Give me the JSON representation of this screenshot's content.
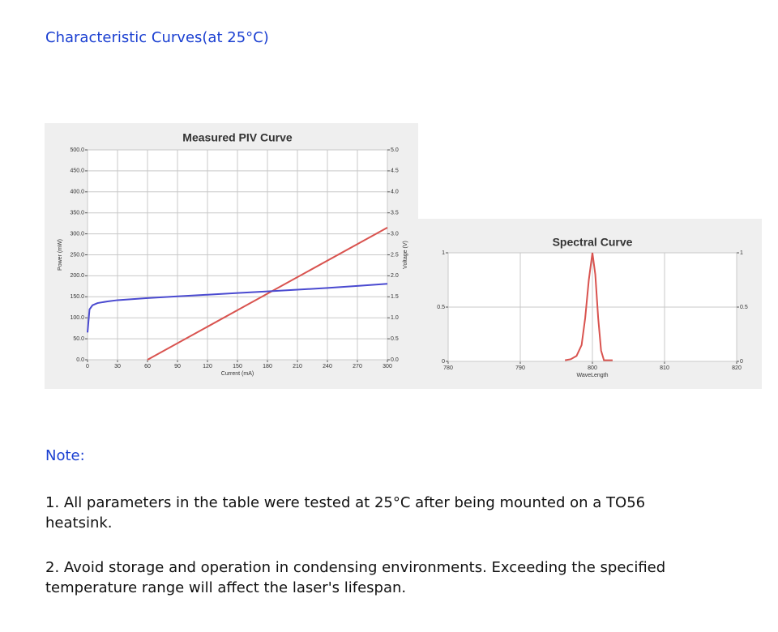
{
  "header": {
    "title": "Characteristic Curves(at 25°C)"
  },
  "chart_data": [
    {
      "type": "line",
      "title": "Measured PIV Curve",
      "x_label": "Current (mA)",
      "y_label": "Power (mW)",
      "y2_label": "Voltage (V)",
      "xlim": [
        0,
        300
      ],
      "xticks": [
        0,
        30,
        60,
        90,
        120,
        150,
        180,
        210,
        240,
        270,
        300
      ],
      "ylim": [
        0,
        500
      ],
      "yticks": [
        {
          "value": 0,
          "label": "0.0"
        },
        {
          "value": 50,
          "label": "50.0"
        },
        {
          "value": 100,
          "label": "100.0"
        },
        {
          "value": 150,
          "label": "150.0"
        },
        {
          "value": 200,
          "label": "200.0"
        },
        {
          "value": 250,
          "label": "250.0"
        },
        {
          "value": 300,
          "label": "300.0"
        },
        {
          "value": 350,
          "label": "350.0"
        },
        {
          "value": 400,
          "label": "400.0"
        },
        {
          "value": 450,
          "label": "450.0"
        },
        {
          "value": 500,
          "label": "500.0"
        }
      ],
      "y2lim": [
        0,
        5
      ],
      "y2ticks": [
        {
          "value": 0,
          "label": "0.0"
        },
        {
          "value": 0.5,
          "label": "0.5"
        },
        {
          "value": 1,
          "label": "1.0"
        },
        {
          "value": 1.5,
          "label": "1.5"
        },
        {
          "value": 2,
          "label": "2.0"
        },
        {
          "value": 2.5,
          "label": "2.5"
        },
        {
          "value": 3,
          "label": "3.0"
        },
        {
          "value": 3.5,
          "label": "3.5"
        },
        {
          "value": 4,
          "label": "4.0"
        },
        {
          "value": 4.5,
          "label": "4.5"
        },
        {
          "value": 5,
          "label": "5.0"
        }
      ],
      "grid": true,
      "series": [
        {
          "color": "#d9534f",
          "x": [
            60,
            300
          ],
          "values": [
            0,
            315
          ]
        },
        {
          "color": "#4a4ad0",
          "axis": "y2",
          "x": [
            0,
            2,
            5,
            10,
            20,
            30,
            60,
            90,
            120,
            150,
            180,
            210,
            240,
            270,
            300
          ],
          "values": [
            0.65,
            1.2,
            1.3,
            1.35,
            1.39,
            1.42,
            1.47,
            1.51,
            1.55,
            1.59,
            1.63,
            1.67,
            1.71,
            1.76,
            1.81
          ]
        }
      ]
    },
    {
      "type": "line",
      "title": "Spectral Curve",
      "x_label": "WaveLength",
      "xlim": [
        780,
        820
      ],
      "xticks": [
        780,
        790,
        800,
        810,
        820
      ],
      "ylim": [
        0,
        1
      ],
      "yticks": [
        0,
        0.5,
        1
      ],
      "y2lim": [
        0,
        1
      ],
      "y2ticks": [
        0,
        0.5,
        1
      ],
      "grid": true,
      "series": [
        {
          "color": "#d9534f",
          "x": [
            796.2,
            797,
            797.8,
            798.5,
            799,
            799.5,
            800,
            800.4,
            800.8,
            801.2,
            801.6,
            802.8
          ],
          "values": [
            0.01,
            0.02,
            0.05,
            0.15,
            0.4,
            0.75,
            1,
            0.8,
            0.4,
            0.1,
            0.01,
            0.01
          ]
        }
      ]
    }
  ],
  "notes": {
    "title": "Note:",
    "items": [
      "1. All parameters in the table were tested at 25°C after being mounted on a TO56 heatsink.",
      "2. Avoid storage and operation in condensing environments. Exceeding the specified temperature range will affect the laser's lifespan."
    ]
  }
}
